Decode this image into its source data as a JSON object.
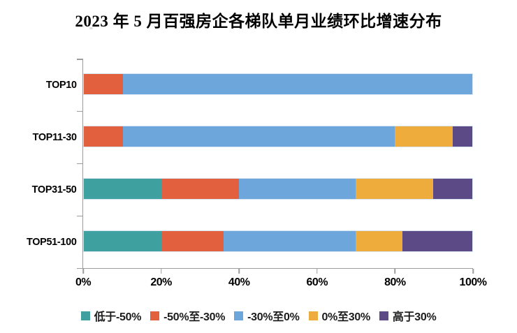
{
  "title": "2023 年 5 月百强房企各梯队单月业绩环比增速分布",
  "chart_data": {
    "type": "bar",
    "orientation": "horizontal",
    "stacked": true,
    "title": "2023 年 5 月百强房企各梯队单月业绩环比增速分布",
    "categories": [
      "TOP10",
      "TOP11-30",
      "TOP31-50",
      "TOP51-100"
    ],
    "series": [
      {
        "name": "低于-50%",
        "color": "#3FA0A0",
        "values": [
          0,
          0,
          20,
          20
        ]
      },
      {
        "name": "-50%至-30%",
        "color": "#E2603D",
        "values": [
          10,
          10,
          20,
          16
        ]
      },
      {
        "name": "-30%至0%",
        "color": "#6CA6DA",
        "values": [
          90,
          70,
          30,
          34
        ]
      },
      {
        "name": "0%至30%",
        "color": "#EDAC3B",
        "values": [
          0,
          15,
          20,
          12
        ]
      },
      {
        "name": "高于30%",
        "color": "#5C4A86",
        "values": [
          0,
          5,
          10,
          18
        ]
      }
    ],
    "xlim": [
      0,
      100
    ],
    "x_tick_values": [
      0,
      20,
      40,
      60,
      80,
      100
    ],
    "x_tick_labels": [
      "0%",
      "20%",
      "40%",
      "60%",
      "80%",
      "100%"
    ],
    "grid": false,
    "legend_position": "bottom"
  },
  "colors": {
    "axis": "#9c9c9c",
    "text": "#000000",
    "bar_border": "#d8e6f4"
  }
}
